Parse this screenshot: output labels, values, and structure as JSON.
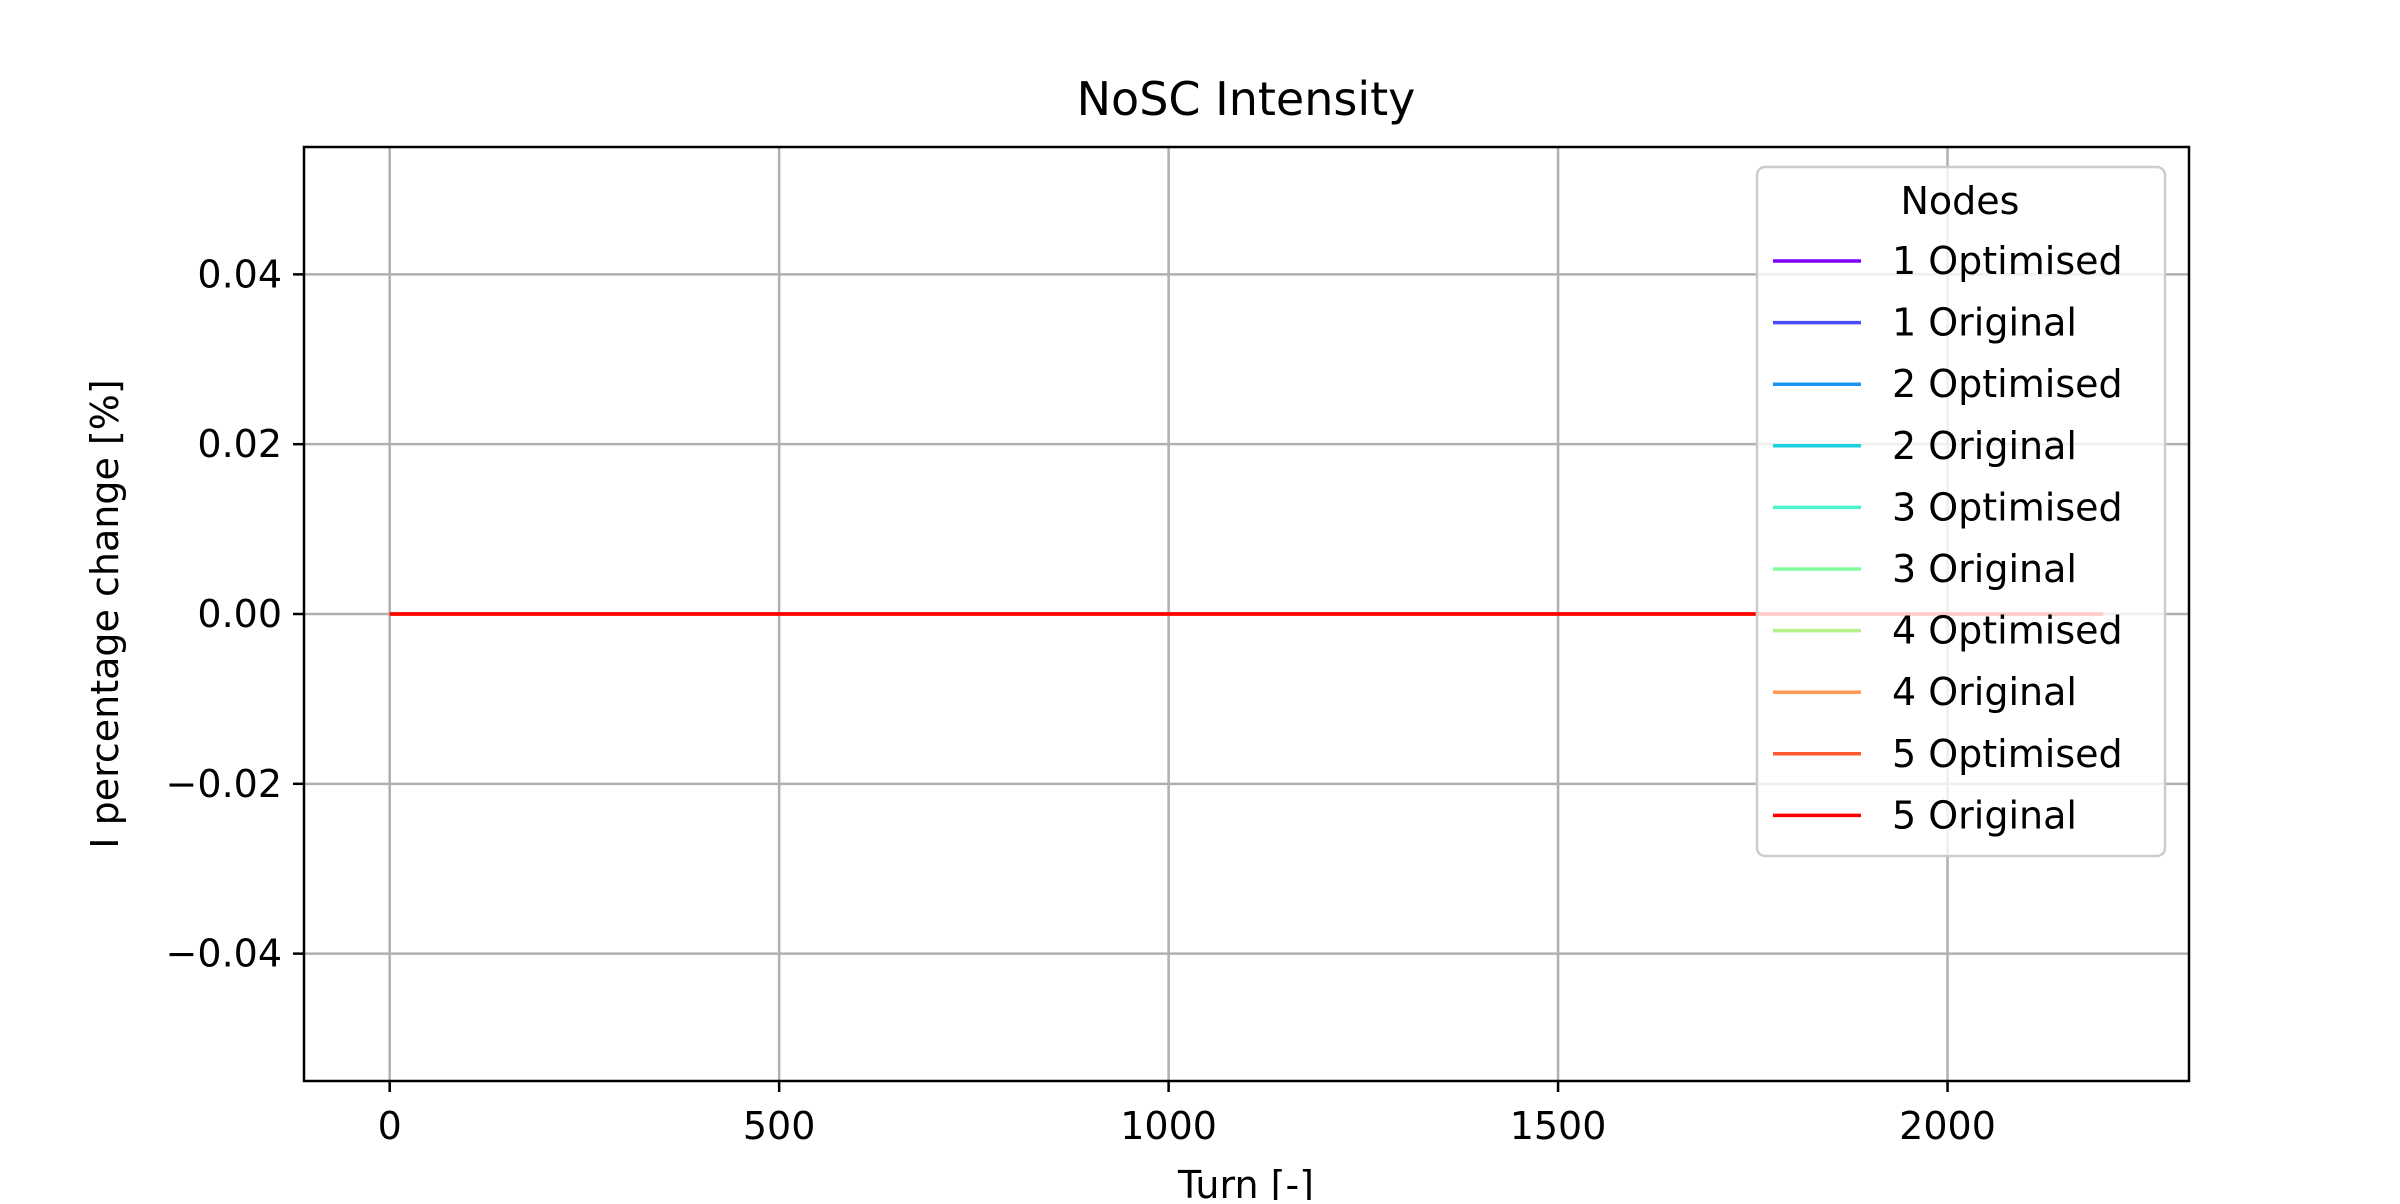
{
  "chart_data": {
    "type": "line",
    "title": "NoSC Intensity",
    "xlabel": "Turn [-]",
    "ylabel": "I percentage change [%]",
    "xlim": [
      -110,
      2310
    ],
    "ylim": [
      -0.055,
      0.055
    ],
    "xticks": [
      0,
      500,
      1000,
      1500,
      2000
    ],
    "xtick_labels": [
      "0",
      "500",
      "1000",
      "1500",
      "2000"
    ],
    "yticks": [
      0.04,
      0.02,
      0.0,
      -0.02,
      -0.04
    ],
    "ytick_labels": [
      "0.04",
      "0.02",
      "0.00",
      "−0.02",
      "−0.04"
    ],
    "grid": true,
    "legend": {
      "title": "Nodes",
      "placement": "top-right"
    },
    "series": [
      {
        "name": "1 Optimised",
        "color": "#7f00ff",
        "x": [
          0,
          2200
        ],
        "y": [
          0,
          0
        ]
      },
      {
        "name": "1 Original",
        "color": "#4b4bfb",
        "x": [
          0,
          2200
        ],
        "y": [
          0,
          0
        ]
      },
      {
        "name": "2 Optimised",
        "color": "#1996f3",
        "x": [
          0,
          2200
        ],
        "y": [
          0,
          0
        ]
      },
      {
        "name": "2 Original",
        "color": "#1ccfdf",
        "x": [
          0,
          2200
        ],
        "y": [
          0,
          0
        ]
      },
      {
        "name": "3 Optimised",
        "color": "#4df3ce",
        "x": [
          0,
          2200
        ],
        "y": [
          0,
          0
        ]
      },
      {
        "name": "3 Original",
        "color": "#80ff9e",
        "x": [
          0,
          2200
        ],
        "y": [
          0,
          0
        ]
      },
      {
        "name": "4 Optimised",
        "color": "#b3f28a",
        "x": [
          0,
          2200
        ],
        "y": [
          0,
          0
        ]
      },
      {
        "name": "4 Original",
        "color": "#ff9a55",
        "x": [
          0,
          2200
        ],
        "y": [
          0,
          0
        ]
      },
      {
        "name": "5 Optimised",
        "color": "#ff5a2e",
        "x": [
          0,
          2200
        ],
        "y": [
          0,
          0
        ]
      },
      {
        "name": "5 Original",
        "color": "#ff0000",
        "x": [
          0,
          2200
        ],
        "y": [
          0,
          0
        ]
      }
    ]
  }
}
